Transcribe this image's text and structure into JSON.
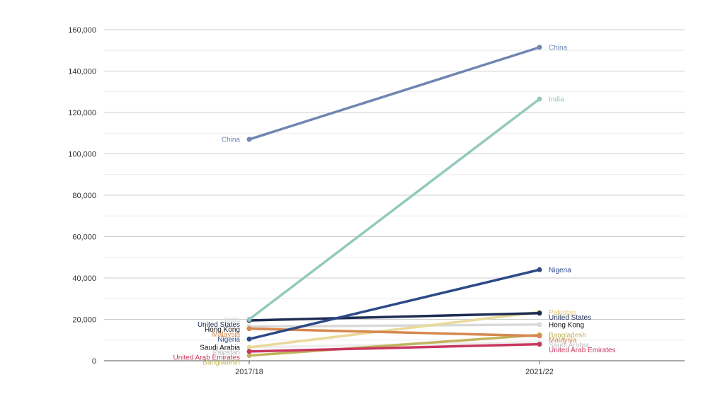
{
  "chart_data": {
    "type": "line",
    "title": "",
    "xlabel": "",
    "ylabel": "",
    "x": [
      "2017/18",
      "2021/22"
    ],
    "ylim": [
      0,
      160000
    ],
    "yticks": [
      0,
      20000,
      40000,
      60000,
      80000,
      100000,
      120000,
      140000,
      160000
    ],
    "ytick_labels": [
      "0",
      "20,000",
      "40,000",
      "60,000",
      "80,000",
      "100,000",
      "120,000",
      "140,000",
      "160,000"
    ],
    "grid": true,
    "legend": "none (labels at line ends)",
    "series": [
      {
        "name": "China",
        "values": [
          107000,
          151500
        ],
        "color": "#7086b1"
      },
      {
        "name": "India",
        "values": [
          20000,
          126500
        ],
        "color": "#93c9bd"
      },
      {
        "name": "Nigeria",
        "values": [
          10500,
          44000
        ],
        "color": "#2d4a87"
      },
      {
        "name": "United States",
        "values": [
          19500,
          23000
        ],
        "color": "#1f2d54"
      },
      {
        "name": "Pakistan",
        "values": [
          6500,
          23500
        ],
        "color": "#e9d99a"
      },
      {
        "name": "Hong Kong",
        "values": [
          16500,
          17500
        ],
        "color": "#d9d9d9"
      },
      {
        "name": "Malaysia",
        "values": [
          15500,
          12000
        ],
        "color": "#d6884f"
      },
      {
        "name": "Bangladesh",
        "values": [
          2500,
          12500
        ],
        "color": "#c1b45c"
      },
      {
        "name": "Saudi Arabia",
        "values": [
          6500,
          9000
        ],
        "color": "#eeeeee"
      },
      {
        "name": "United Arab Emirates",
        "values": [
          4500,
          8000
        ],
        "color": "#c8375f"
      }
    ],
    "start_labels": [
      {
        "name": "China",
        "color": "#7086b1"
      },
      {
        "name": "India",
        "color": "#d4d4d4"
      },
      {
        "name": "United States",
        "color": "#1f2d54"
      },
      {
        "name": "Hong Kong",
        "color": "#111111"
      },
      {
        "name": "Malaysia",
        "color": "#d6884f"
      },
      {
        "name": "Nigeria",
        "color": "#2d4a87"
      },
      {
        "name": "Saudi Arabia",
        "color": "#111111"
      },
      {
        "name": "Pakistan",
        "color": "#bdbdbd"
      },
      {
        "name": "United Arab Emirates",
        "color": "#c8375f"
      },
      {
        "name": "Bangladesh",
        "color": "#c9b85a"
      }
    ],
    "end_labels": [
      {
        "name": "China",
        "color": "#7086b1"
      },
      {
        "name": "India",
        "color": "#93c9bd"
      },
      {
        "name": "Nigeria",
        "color": "#2d4a87"
      },
      {
        "name": "Pakistan",
        "color": "#e2c97a"
      },
      {
        "name": "United States",
        "color": "#1f2d54"
      },
      {
        "name": "Hong Kong",
        "color": "#111111"
      },
      {
        "name": "Bangladesh",
        "color": "#c1b45c"
      },
      {
        "name": "Malaysia",
        "color": "#d6884f"
      },
      {
        "name": "Saudi Arabia",
        "color": "#bdbdbd"
      },
      {
        "name": "United Arab Emirates",
        "color": "#c8375f"
      }
    ]
  }
}
